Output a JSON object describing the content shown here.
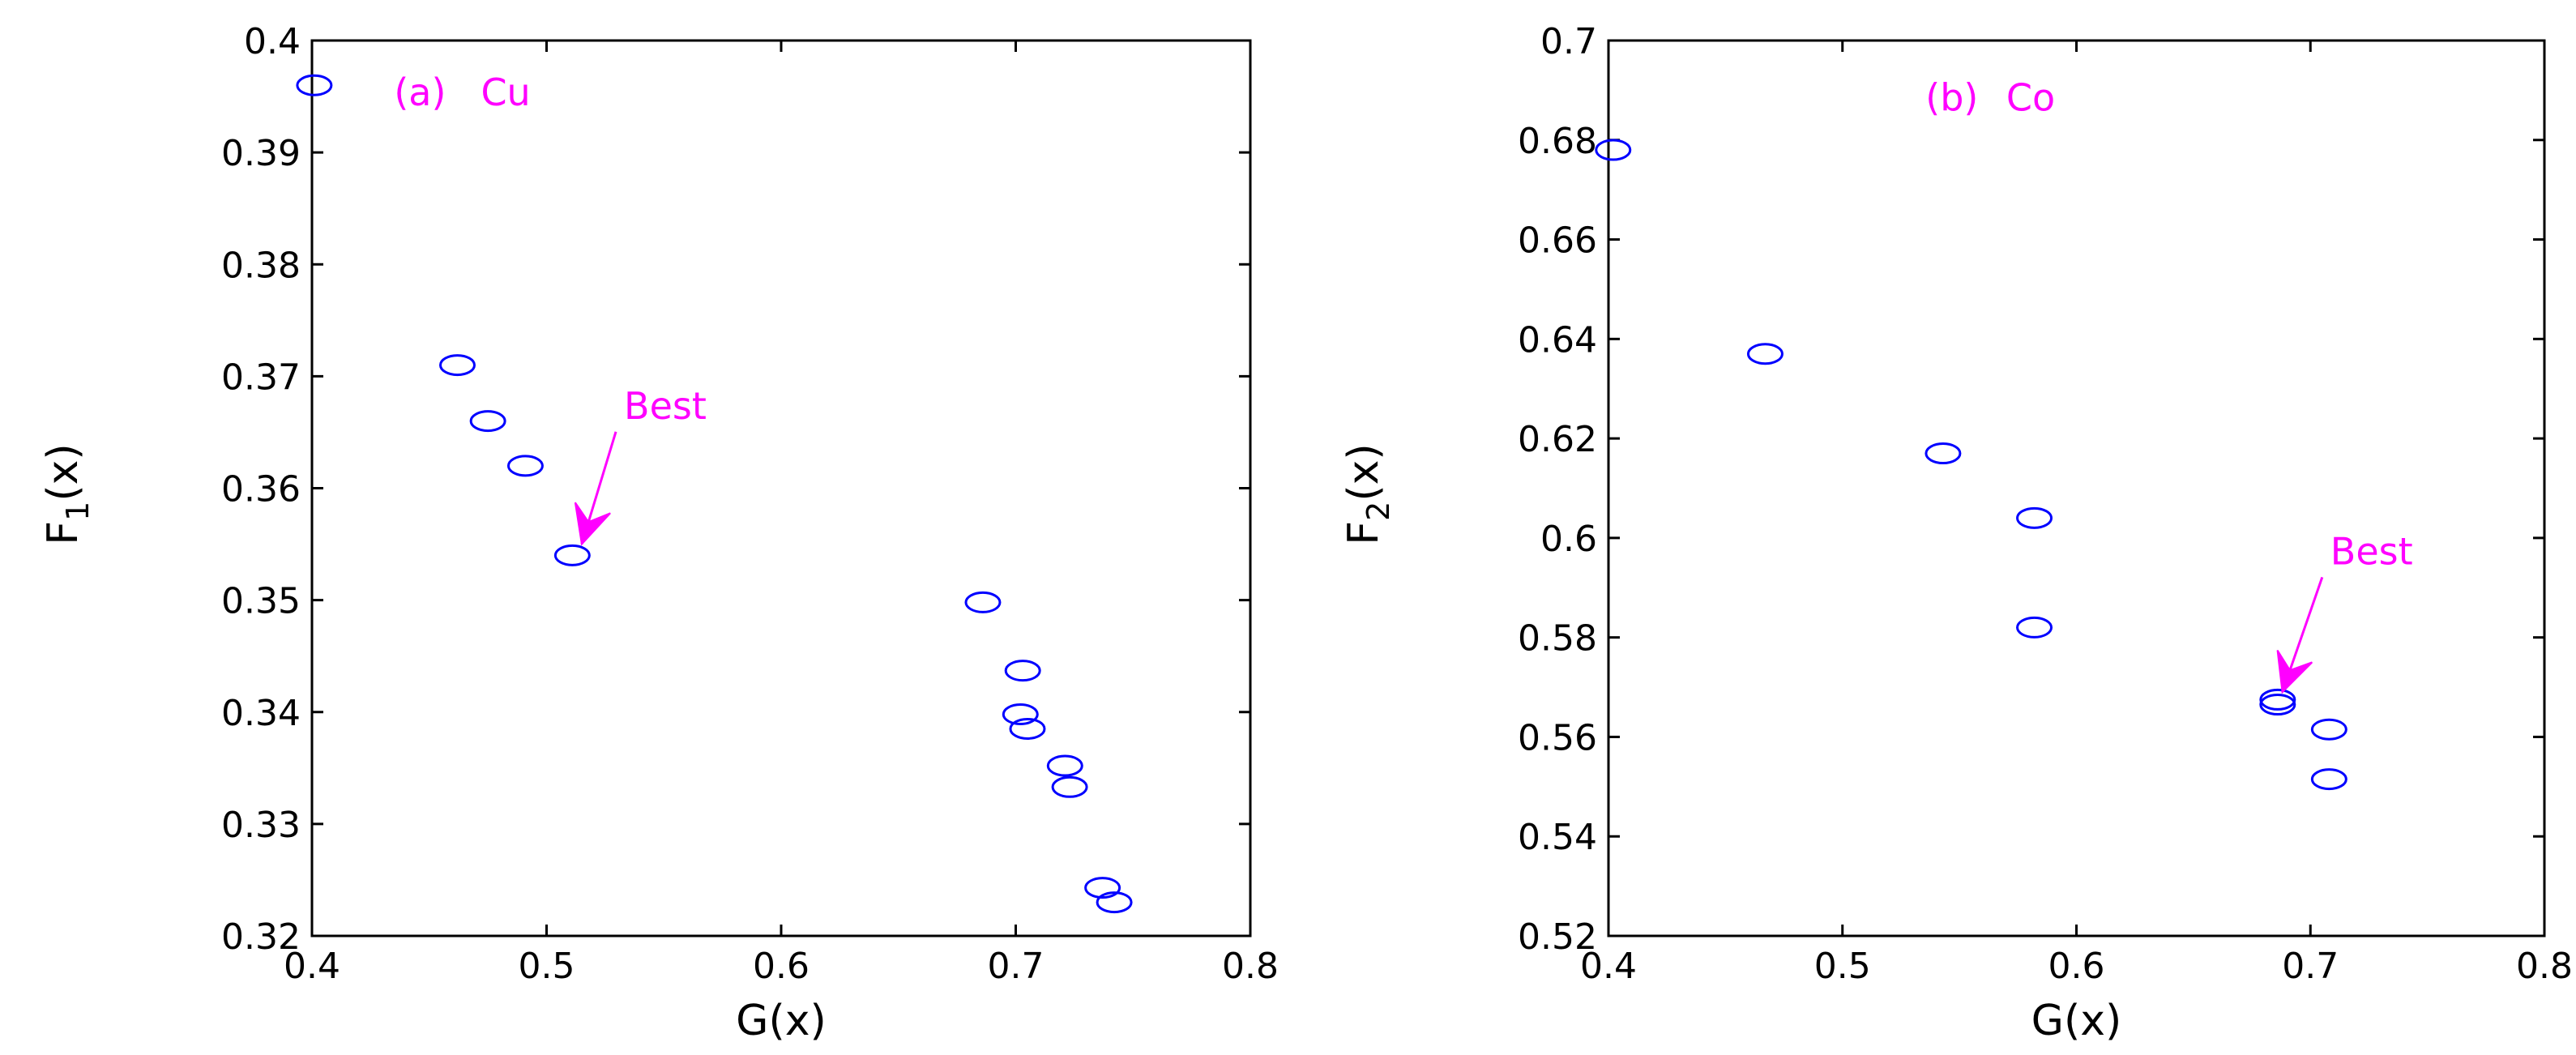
{
  "chart_data": [
    {
      "type": "scatter",
      "title": "",
      "xlabel": "G(x)",
      "ylabel_main": "F",
      "ylabel_sub": "1",
      "ylabel_tail": "(x)",
      "xlim": [
        0.4,
        0.8
      ],
      "ylim": [
        0.32,
        0.4
      ],
      "xticks": [
        0.4,
        0.5,
        0.6,
        0.7,
        0.8
      ],
      "xtick_labels": [
        "0.4",
        "0.5",
        "0.6",
        "0.7",
        "0.8"
      ],
      "yticks": [
        0.32,
        0.33,
        0.34,
        0.35,
        0.36,
        0.37,
        0.38,
        0.39,
        0.4
      ],
      "ytick_labels": [
        "0.32",
        "0.33",
        "0.34",
        "0.35",
        "0.36",
        "0.37",
        "0.38",
        "0.39",
        "0.4"
      ],
      "grid": false,
      "marker": "circle-open",
      "marker_color": "#0000ff",
      "points": [
        {
          "x": 0.401,
          "y": 0.396
        },
        {
          "x": 0.462,
          "y": 0.371
        },
        {
          "x": 0.475,
          "y": 0.366
        },
        {
          "x": 0.491,
          "y": 0.362
        },
        {
          "x": 0.511,
          "y": 0.354
        },
        {
          "x": 0.686,
          "y": 0.3498
        },
        {
          "x": 0.703,
          "y": 0.3437
        },
        {
          "x": 0.702,
          "y": 0.3398
        },
        {
          "x": 0.705,
          "y": 0.3385
        },
        {
          "x": 0.721,
          "y": 0.3352
        },
        {
          "x": 0.723,
          "y": 0.3333
        },
        {
          "x": 0.737,
          "y": 0.3243
        },
        {
          "x": 0.742,
          "y": 0.323
        }
      ],
      "annotations": [
        {
          "text": "(a)",
          "x": 0.435,
          "y": 0.3942,
          "color": "#ff00ff"
        },
        {
          "text": "Cu",
          "x": 0.472,
          "y": 0.3942,
          "color": "#ff00ff"
        },
        {
          "text": "Best",
          "x": 0.533,
          "y": 0.3662,
          "color": "#ff00ff",
          "arrow_to": {
            "x": 0.515,
            "y": 0.355
          }
        }
      ]
    },
    {
      "type": "scatter",
      "title": "",
      "xlabel": "G(x)",
      "ylabel_main": "F",
      "ylabel_sub": "2",
      "ylabel_tail": "(x)",
      "xlim": [
        0.4,
        0.8
      ],
      "ylim": [
        0.52,
        0.7
      ],
      "xticks": [
        0.4,
        0.5,
        0.6,
        0.7,
        0.8
      ],
      "xtick_labels": [
        "0.4",
        "0.5",
        "0.6",
        "0.7",
        "0.8"
      ],
      "yticks": [
        0.52,
        0.54,
        0.56,
        0.58,
        0.6,
        0.62,
        0.64,
        0.66,
        0.68,
        0.7
      ],
      "ytick_labels": [
        "0.52",
        "0.54",
        "0.56",
        "0.58",
        "0.6",
        "0.62",
        "0.64",
        "0.66",
        "0.68",
        "0.7"
      ],
      "grid": false,
      "marker": "circle-open",
      "marker_color": "#0000ff",
      "points": [
        {
          "x": 0.402,
          "y": 0.678
        },
        {
          "x": 0.467,
          "y": 0.637
        },
        {
          "x": 0.543,
          "y": 0.617
        },
        {
          "x": 0.582,
          "y": 0.604
        },
        {
          "x": 0.582,
          "y": 0.582
        },
        {
          "x": 0.686,
          "y": 0.5675
        },
        {
          "x": 0.686,
          "y": 0.5665
        },
        {
          "x": 0.708,
          "y": 0.5615
        },
        {
          "x": 0.708,
          "y": 0.5515
        }
      ],
      "annotations": [
        {
          "text": "(b)",
          "x": 0.5355,
          "y": 0.6859,
          "color": "#ff00ff"
        },
        {
          "text": "Co",
          "x": 0.57,
          "y": 0.6859,
          "color": "#ff00ff"
        },
        {
          "text": "Best",
          "x": 0.7085,
          "y": 0.5947,
          "color": "#ff00ff",
          "arrow_to": {
            "x": 0.688,
            "y": 0.569
          }
        }
      ]
    }
  ]
}
